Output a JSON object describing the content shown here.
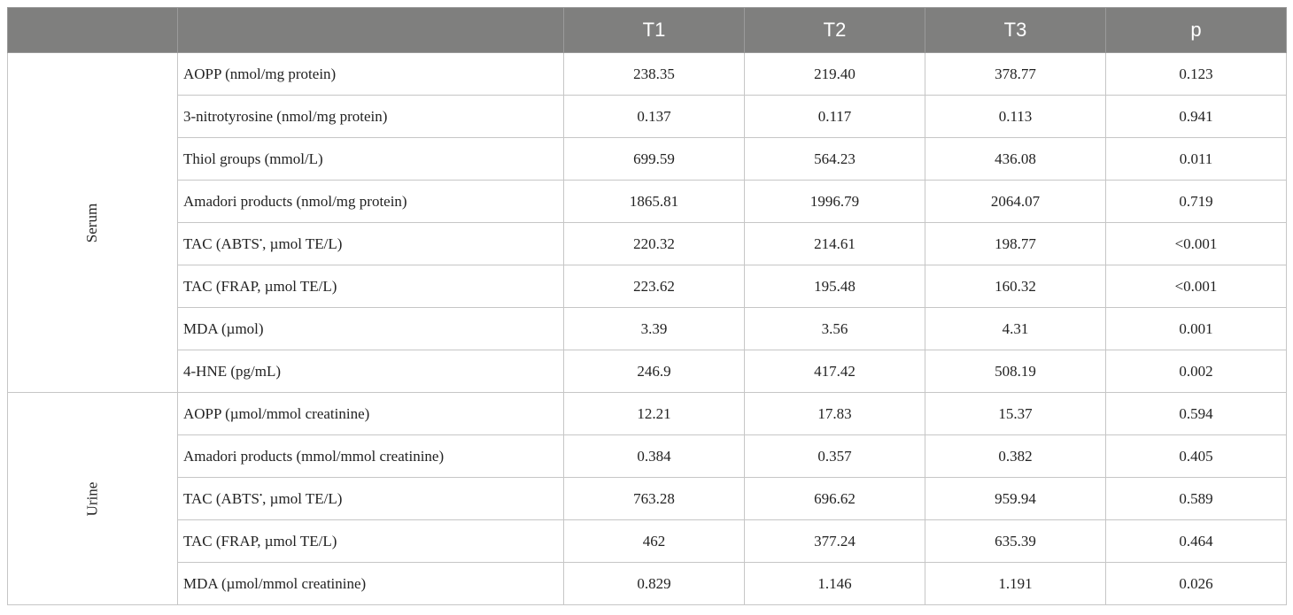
{
  "table": {
    "headers": [
      "",
      "",
      "T1",
      "T2",
      "T3",
      "p"
    ],
    "groups": [
      {
        "name": "Serum",
        "rows": [
          {
            "label": "AOPP (nmol/mg protein)",
            "t1": "238.35",
            "t2": "219.40",
            "t3": "378.77",
            "p": "0.123"
          },
          {
            "label": "3-nitrotyrosine (nmol/mg protein)",
            "t1": "0.137",
            "t2": "0.117",
            "t3": "0.113",
            "p": "0.941"
          },
          {
            "label": "Thiol groups (mmol/L)",
            "t1": "699.59",
            "t2": "564.23",
            "t3": "436.08",
            "p": "0.011"
          },
          {
            "label": "Amadori products (nmol/mg protein)",
            "t1": "1865.81",
            "t2": "1996.79",
            "t3": "2064.07",
            "p": "0.719"
          },
          {
            "label_pre": "TAC (ABTS",
            "label_sup": "•",
            "label_post": ", µmol TE/L)",
            "t1": "220.32",
            "t2": "214.61",
            "t3": "198.77",
            "p": "<0.001"
          },
          {
            "label": "TAC (FRAP, µmol TE/L)",
            "t1": "223.62",
            "t2": "195.48",
            "t3": "160.32",
            "p": "<0.001"
          },
          {
            "label": "MDA (µmol)",
            "t1": "3.39",
            "t2": "3.56",
            "t3": "4.31",
            "p": "0.001"
          },
          {
            "label": "4-HNE (pg/mL)",
            "t1": "246.9",
            "t2": "417.42",
            "t3": "508.19",
            "p": "0.002"
          }
        ]
      },
      {
        "name": "Urine",
        "rows": [
          {
            "label": "AOPP (µmol/mmol creatinine)",
            "t1": "12.21",
            "t2": "17.83",
            "t3": "15.37",
            "p": "0.594"
          },
          {
            "label": "Amadori products (mmol/mmol creatinine)",
            "t1": "0.384",
            "t2": "0.357",
            "t3": "0.382",
            "p": "0.405"
          },
          {
            "label_pre": "TAC (ABTS",
            "label_sup": "•",
            "label_post": ", µmol TE/L)",
            "t1": "763.28",
            "t2": "696.62",
            "t3": "959.94",
            "p": "0.589"
          },
          {
            "label": "TAC (FRAP, µmol TE/L)",
            "t1": "462",
            "t2": "377.24",
            "t3": "635.39",
            "p": "0.464"
          },
          {
            "label": "MDA (µmol/mmol creatinine)",
            "t1": "0.829",
            "t2": "1.146",
            "t3": "1.191",
            "p": "0.026"
          }
        ]
      }
    ]
  }
}
